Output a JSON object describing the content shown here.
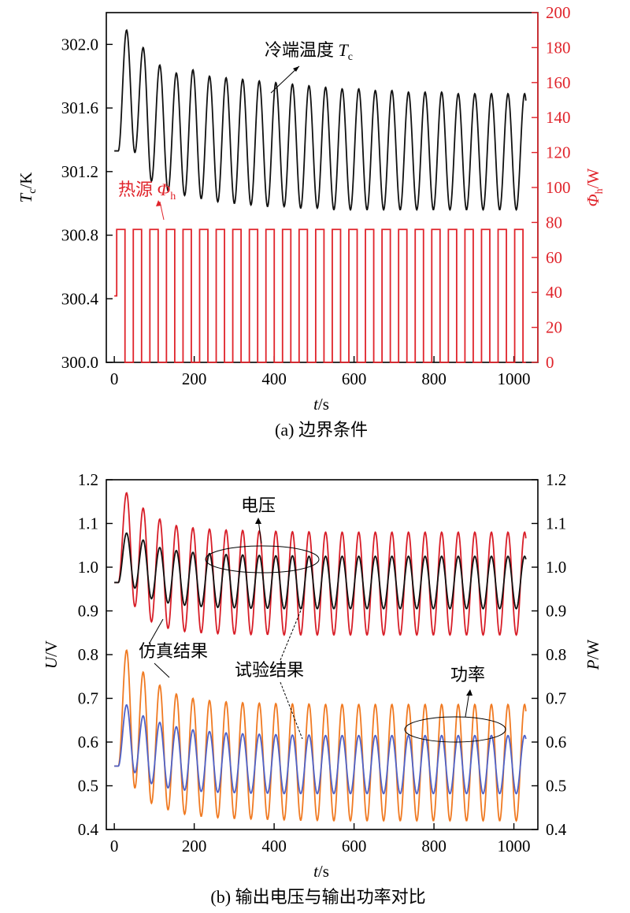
{
  "chart_data": [
    {
      "id": "a",
      "type": "line",
      "caption": "(a) 边界条件",
      "xlabel": {
        "var": "t",
        "unit": "/s"
      },
      "xlim": [
        -20,
        1060
      ],
      "xticks": [
        "0",
        "200",
        "400",
        "600",
        "800",
        "1000"
      ],
      "xtick_values": [
        0,
        200,
        400,
        600,
        800,
        1000
      ],
      "ylabel_left": {
        "var": "T",
        "sub": "c",
        "unit": "/K"
      },
      "ylim_left": [
        300.0,
        302.2
      ],
      "yticks_left": [
        "300.0",
        "300.4",
        "300.8",
        "301.2",
        "301.6",
        "302.0"
      ],
      "ytick_values_left": [
        300.0,
        300.4,
        300.8,
        301.2,
        301.6,
        302.0
      ],
      "ylabel_right": {
        "var": "Φ",
        "sub": "h",
        "unit": "/W"
      },
      "ylim_right": [
        0,
        200
      ],
      "yticks_right": [
        "0",
        "20",
        "40",
        "60",
        "80",
        "100",
        "120",
        "140",
        "160",
        "180",
        "200"
      ],
      "ytick_values_right": [
        0,
        20,
        40,
        60,
        80,
        100,
        120,
        140,
        160,
        180,
        200
      ],
      "annotations": [
        {
          "text": "冷端温度 ",
          "var": "T",
          "sub": "c"
        },
        {
          "text": "热源 ",
          "var": "Φ",
          "sub": "h"
        }
      ],
      "colors": {
        "Tc": "#111111",
        "Phi": "#e0242b",
        "right_axis": "#e0242b"
      },
      "series": [
        {
          "key": "Tc",
          "axis": "left",
          "t0": 10,
          "period": 41.5,
          "t_end": 1030,
          "start_value": 301.33,
          "peaks": [
            302.09,
            301.98,
            301.87,
            301.82,
            301.84,
            301.8,
            301.79,
            301.78,
            301.77,
            301.76,
            301.75,
            301.74,
            301.73,
            301.72,
            301.72,
            301.71,
            301.71,
            301.7,
            301.7,
            301.7,
            301.69,
            301.69,
            301.69,
            301.69
          ],
          "troughs": [
            301.32,
            301.14,
            301.08,
            301.05,
            301.03,
            301.01,
            301.0,
            300.99,
            300.98,
            300.98,
            300.97,
            300.97,
            300.96,
            300.96,
            300.96,
            300.96,
            300.96,
            300.96,
            300.96,
            300.96,
            300.96,
            300.96,
            300.96,
            300.96
          ]
        },
        {
          "key": "Phi",
          "axis": "right",
          "type": "square_wave",
          "levels": [
            0,
            76
          ],
          "initial_value": 38,
          "initial_segment": [
            0,
            6
          ],
          "t_start": 6,
          "period": 41.5,
          "duty": 0.5,
          "t_end": 1030
        }
      ]
    },
    {
      "id": "b",
      "type": "line",
      "caption": "(b) 输出电压与输出功率对比",
      "xlabel": {
        "var": "t",
        "unit": "/s"
      },
      "xlim": [
        -20,
        1060
      ],
      "xticks": [
        "0",
        "200",
        "400",
        "600",
        "800",
        "1000"
      ],
      "xtick_values": [
        0,
        200,
        400,
        600,
        800,
        1000
      ],
      "ylabel_left": {
        "var": "U",
        "unit": "/V"
      },
      "ylabel_right": {
        "var": "P",
        "unit": "/W"
      },
      "ylim": [
        0.4,
        1.2
      ],
      "yticks": [
        "0.4",
        "0.5",
        "0.6",
        "0.7",
        "0.8",
        "0.9",
        "1.0",
        "1.1",
        "1.2"
      ],
      "ytick_values": [
        0.4,
        0.5,
        0.6,
        0.7,
        0.8,
        0.9,
        1.0,
        1.1,
        1.2
      ],
      "annotations": [
        {
          "text": "电压"
        },
        {
          "text": "功率"
        },
        {
          "text": "仿真结果"
        },
        {
          "text": "试验结果"
        }
      ],
      "colors": {
        "voltage_sim": "#d81e28",
        "voltage_exp": "#111111",
        "power_sim": "#f07a22",
        "power_exp": "#4f62c8"
      },
      "series": [
        {
          "key": "voltage_sim",
          "t0": 10,
          "period": 41.5,
          "t_end": 1030,
          "start_value": 0.965,
          "peaks": [
            1.17,
            1.135,
            1.11,
            1.095,
            1.09,
            1.087,
            1.085,
            1.084,
            1.083,
            1.082,
            1.081,
            1.081,
            1.08,
            1.08,
            1.08,
            1.08,
            1.08,
            1.08,
            1.08,
            1.08,
            1.08,
            1.08,
            1.08,
            1.08
          ],
          "troughs": [
            0.91,
            0.875,
            0.86,
            0.853,
            0.85,
            0.848,
            0.847,
            0.846,
            0.846,
            0.845,
            0.845,
            0.845,
            0.845,
            0.845,
            0.845,
            0.845,
            0.845,
            0.845,
            0.845,
            0.845,
            0.845,
            0.845,
            0.845,
            0.845
          ]
        },
        {
          "key": "voltage_exp",
          "t0": 10,
          "period": 41.5,
          "t_end": 1030,
          "start_value": 0.965,
          "peaks": [
            1.078,
            1.062,
            1.045,
            1.038,
            1.034,
            1.031,
            1.029,
            1.028,
            1.027,
            1.026,
            1.026,
            1.025,
            1.025,
            1.025,
            1.025,
            1.025,
            1.025,
            1.025,
            1.025,
            1.025,
            1.025,
            1.025,
            1.025,
            1.025
          ],
          "troughs": [
            0.952,
            0.928,
            0.918,
            0.913,
            0.91,
            0.908,
            0.907,
            0.906,
            0.906,
            0.905,
            0.905,
            0.905,
            0.905,
            0.905,
            0.905,
            0.905,
            0.905,
            0.905,
            0.905,
            0.905,
            0.905,
            0.905,
            0.905,
            0.905
          ]
        },
        {
          "key": "power_sim",
          "t0": 10,
          "period": 41.5,
          "t_end": 1030,
          "start_value": 0.545,
          "peaks": [
            0.81,
            0.76,
            0.73,
            0.71,
            0.7,
            0.695,
            0.692,
            0.69,
            0.689,
            0.688,
            0.687,
            0.687,
            0.686,
            0.686,
            0.686,
            0.686,
            0.686,
            0.686,
            0.686,
            0.686,
            0.686,
            0.686,
            0.686,
            0.686
          ],
          "troughs": [
            0.495,
            0.46,
            0.445,
            0.435,
            0.43,
            0.427,
            0.425,
            0.424,
            0.423,
            0.422,
            0.421,
            0.421,
            0.42,
            0.42,
            0.42,
            0.42,
            0.42,
            0.42,
            0.42,
            0.42,
            0.42,
            0.42,
            0.42,
            0.42
          ]
        },
        {
          "key": "power_exp",
          "t0": 10,
          "period": 41.5,
          "t_end": 1030,
          "start_value": 0.545,
          "peaks": [
            0.685,
            0.66,
            0.645,
            0.635,
            0.628,
            0.624,
            0.621,
            0.619,
            0.618,
            0.617,
            0.616,
            0.616,
            0.615,
            0.615,
            0.615,
            0.615,
            0.615,
            0.615,
            0.615,
            0.615,
            0.615,
            0.615,
            0.615,
            0.615
          ],
          "troughs": [
            0.53,
            0.505,
            0.495,
            0.49,
            0.487,
            0.485,
            0.484,
            0.483,
            0.483,
            0.482,
            0.482,
            0.482,
            0.482,
            0.482,
            0.482,
            0.482,
            0.482,
            0.482,
            0.482,
            0.482,
            0.482,
            0.482,
            0.482,
            0.482
          ]
        }
      ]
    }
  ]
}
